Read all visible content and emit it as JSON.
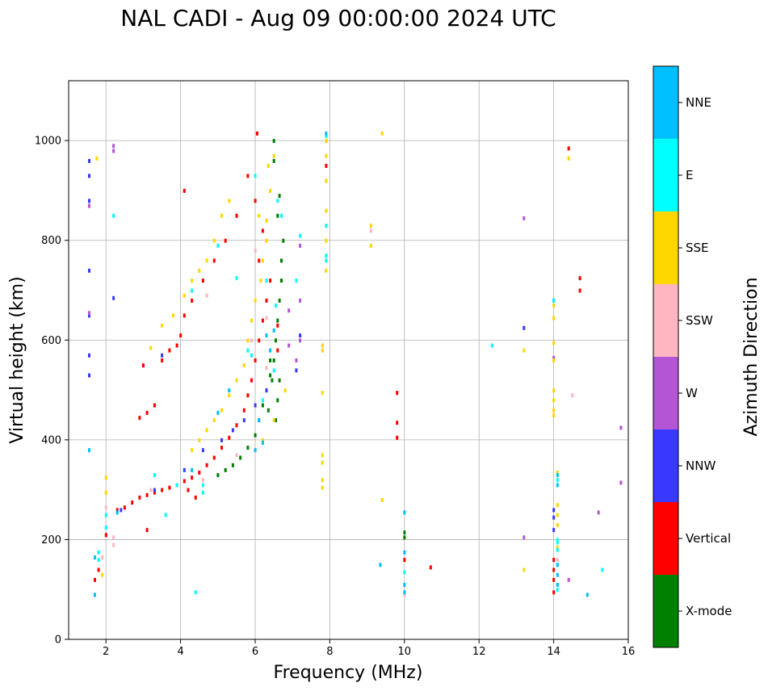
{
  "chart_data": {
    "type": "scatter",
    "title": "NAL CADI - Aug 09 00:00:00 2024 UTC",
    "xlabel": "Frequency (MHz)",
    "ylabel": "Virtual height (km)",
    "xlim": [
      1,
      16
    ],
    "ylim": [
      0,
      1120
    ],
    "xticks": [
      2,
      4,
      6,
      8,
      10,
      12,
      14,
      16
    ],
    "yticks": [
      0,
      200,
      400,
      600,
      800,
      1000
    ],
    "grid": true,
    "colorbar": {
      "label": "Azimuth Direction",
      "categories": [
        "X-mode",
        "Vertical",
        "NNW",
        "W",
        "SSW",
        "SSE",
        "E",
        "NNE"
      ],
      "colors": [
        "#008000",
        "#ff0000",
        "#3838ff",
        "#b455d6",
        "#ffb6c1",
        "#ffd700",
        "#00ffff",
        "#00bfff"
      ]
    },
    "series": [
      {
        "name": "X-mode",
        "points": [
          [
            5.0,
            330
          ],
          [
            5.2,
            340
          ],
          [
            5.4,
            350
          ],
          [
            5.6,
            365
          ],
          [
            5.8,
            385
          ],
          [
            6.0,
            410
          ],
          [
            6.1,
            440
          ],
          [
            6.2,
            470
          ],
          [
            6.3,
            500
          ],
          [
            6.4,
            530
          ],
          [
            6.5,
            560
          ],
          [
            6.55,
            600
          ],
          [
            6.6,
            640
          ],
          [
            6.65,
            680
          ],
          [
            6.7,
            720
          ],
          [
            6.7,
            760
          ],
          [
            6.75,
            800
          ],
          [
            6.6,
            850
          ],
          [
            6.65,
            890
          ],
          [
            6.5,
            960
          ],
          [
            6.5,
            1000
          ],
          [
            6.45,
            520
          ],
          [
            6.6,
            480
          ],
          [
            6.55,
            440
          ],
          [
            6.35,
            460
          ],
          [
            6.4,
            560
          ],
          [
            6.65,
            520
          ],
          [
            10.0,
            215
          ],
          [
            10.0,
            205
          ]
        ]
      },
      {
        "name": "Vertical",
        "points": [
          [
            1.7,
            120
          ],
          [
            1.8,
            140
          ],
          [
            2.0,
            210
          ],
          [
            2.3,
            260
          ],
          [
            2.5,
            265
          ],
          [
            2.7,
            275
          ],
          [
            2.9,
            285
          ],
          [
            3.1,
            290
          ],
          [
            3.3,
            295
          ],
          [
            3.5,
            300
          ],
          [
            3.7,
            305
          ],
          [
            3.9,
            310
          ],
          [
            4.1,
            318
          ],
          [
            4.3,
            325
          ],
          [
            4.5,
            335
          ],
          [
            4.7,
            350
          ],
          [
            4.9,
            365
          ],
          [
            5.1,
            385
          ],
          [
            5.3,
            405
          ],
          [
            5.5,
            430
          ],
          [
            5.7,
            460
          ],
          [
            5.8,
            490
          ],
          [
            5.9,
            520
          ],
          [
            6.0,
            560
          ],
          [
            6.1,
            600
          ],
          [
            6.2,
            640
          ],
          [
            6.3,
            680
          ],
          [
            6.4,
            720
          ],
          [
            6.1,
            760
          ],
          [
            6.2,
            820
          ],
          [
            6.0,
            880
          ],
          [
            5.8,
            930
          ],
          [
            5.5,
            850
          ],
          [
            5.2,
            800
          ],
          [
            4.9,
            760
          ],
          [
            4.6,
            720
          ],
          [
            4.3,
            680
          ],
          [
            4.1,
            650
          ],
          [
            4.0,
            610
          ],
          [
            3.9,
            590
          ],
          [
            3.7,
            580
          ],
          [
            3.5,
            560
          ],
          [
            3.3,
            470
          ],
          [
            3.1,
            455
          ],
          [
            2.9,
            445
          ],
          [
            3.0,
            550
          ],
          [
            3.1,
            220
          ],
          [
            4.1,
            900
          ],
          [
            6.05,
            1015
          ],
          [
            7.9,
            950
          ],
          [
            9.8,
            495
          ],
          [
            9.8,
            435
          ],
          [
            9.8,
            405
          ],
          [
            10.0,
            160
          ],
          [
            10.7,
            145
          ],
          [
            14.0,
            95
          ],
          [
            14.0,
            120
          ],
          [
            14.0,
            140
          ],
          [
            14.0,
            160
          ],
          [
            14.4,
            985
          ],
          [
            14.7,
            700
          ],
          [
            14.7,
            725
          ],
          [
            4.4,
            285
          ],
          [
            4.2,
            300
          ],
          [
            6.6,
            630
          ],
          [
            6.6,
            580
          ]
        ]
      },
      {
        "name": "NNW",
        "points": [
          [
            1.55,
            960
          ],
          [
            1.55,
            930
          ],
          [
            1.55,
            880
          ],
          [
            1.55,
            740
          ],
          [
            1.55,
            650
          ],
          [
            1.55,
            570
          ],
          [
            1.55,
            530
          ],
          [
            2.2,
            685
          ],
          [
            2.4,
            260
          ],
          [
            3.3,
            300
          ],
          [
            3.5,
            570
          ],
          [
            4.1,
            340
          ],
          [
            4.6,
            380
          ],
          [
            5.1,
            400
          ],
          [
            5.4,
            420
          ],
          [
            5.7,
            440
          ],
          [
            6.0,
            470
          ],
          [
            6.3,
            500
          ],
          [
            7.1,
            540
          ],
          [
            7.2,
            610
          ],
          [
            13.2,
            625
          ],
          [
            14.0,
            680
          ],
          [
            14.0,
            260
          ],
          [
            14.0,
            245
          ],
          [
            14.0,
            220
          ]
        ]
      },
      {
        "name": "W",
        "points": [
          [
            2.2,
            990
          ],
          [
            2.2,
            980
          ],
          [
            1.55,
            870
          ],
          [
            1.55,
            655
          ],
          [
            7.2,
            790
          ],
          [
            7.2,
            680
          ],
          [
            7.2,
            600
          ],
          [
            7.1,
            560
          ],
          [
            13.2,
            845
          ],
          [
            13.2,
            205
          ],
          [
            14.0,
            565
          ],
          [
            14.4,
            120
          ],
          [
            15.2,
            255
          ],
          [
            15.8,
            425
          ],
          [
            15.8,
            315
          ],
          [
            6.9,
            660
          ],
          [
            6.9,
            590
          ]
        ]
      },
      {
        "name": "SSW",
        "points": [
          [
            2.2,
            205
          ],
          [
            2.2,
            190
          ],
          [
            1.9,
            165
          ],
          [
            2.0,
            265
          ],
          [
            3.2,
            300
          ],
          [
            4.6,
            320
          ],
          [
            5.5,
            370
          ],
          [
            6.3,
            645
          ],
          [
            6.3,
            545
          ],
          [
            9.1,
            820
          ],
          [
            10.0,
            90
          ],
          [
            14.1,
            160
          ],
          [
            14.5,
            490
          ],
          [
            4.7,
            690
          ],
          [
            5.9,
            600
          ],
          [
            6.0,
            780
          ]
        ]
      },
      {
        "name": "SSE",
        "points": [
          [
            1.75,
            965
          ],
          [
            2.0,
            325
          ],
          [
            2.0,
            295
          ],
          [
            1.9,
            130
          ],
          [
            3.2,
            585
          ],
          [
            3.5,
            630
          ],
          [
            3.8,
            650
          ],
          [
            4.1,
            690
          ],
          [
            4.3,
            720
          ],
          [
            4.5,
            740
          ],
          [
            4.7,
            760
          ],
          [
            4.9,
            800
          ],
          [
            5.1,
            850
          ],
          [
            5.3,
            880
          ],
          [
            4.3,
            380
          ],
          [
            4.5,
            400
          ],
          [
            4.7,
            420
          ],
          [
            4.9,
            440
          ],
          [
            5.1,
            460
          ],
          [
            5.3,
            490
          ],
          [
            5.5,
            520
          ],
          [
            5.7,
            550
          ],
          [
            5.8,
            600
          ],
          [
            5.9,
            640
          ],
          [
            6.0,
            680
          ],
          [
            6.15,
            720
          ],
          [
            6.2,
            760
          ],
          [
            6.3,
            800
          ],
          [
            6.3,
            840
          ],
          [
            6.4,
            900
          ],
          [
            6.35,
            950
          ],
          [
            6.5,
            970
          ],
          [
            6.1,
            850
          ],
          [
            7.9,
            1000
          ],
          [
            7.9,
            970
          ],
          [
            7.9,
            920
          ],
          [
            7.9,
            860
          ],
          [
            7.9,
            830
          ],
          [
            7.9,
            800
          ],
          [
            7.9,
            760
          ],
          [
            7.9,
            740
          ],
          [
            7.8,
            590
          ],
          [
            7.8,
            580
          ],
          [
            7.8,
            495
          ],
          [
            7.8,
            370
          ],
          [
            7.8,
            355
          ],
          [
            7.8,
            320
          ],
          [
            7.8,
            305
          ],
          [
            9.1,
            830
          ],
          [
            9.1,
            790
          ],
          [
            9.4,
            1015
          ],
          [
            9.4,
            280
          ],
          [
            13.2,
            580
          ],
          [
            13.2,
            140
          ],
          [
            14.0,
            670
          ],
          [
            14.0,
            645
          ],
          [
            14.0,
            595
          ],
          [
            14.0,
            560
          ],
          [
            14.0,
            500
          ],
          [
            14.0,
            480
          ],
          [
            14.0,
            460
          ],
          [
            14.0,
            450
          ],
          [
            14.1,
            335
          ],
          [
            14.1,
            270
          ],
          [
            14.1,
            250
          ],
          [
            14.1,
            230
          ],
          [
            14.1,
            185
          ],
          [
            14.4,
            965
          ],
          [
            6.5,
            440
          ],
          [
            6.2,
            400
          ],
          [
            6.8,
            500
          ]
        ]
      },
      {
        "name": "E",
        "points": [
          [
            1.8,
            175
          ],
          [
            1.8,
            160
          ],
          [
            2.0,
            250
          ],
          [
            2.0,
            225
          ],
          [
            2.2,
            850
          ],
          [
            3.3,
            330
          ],
          [
            3.6,
            250
          ],
          [
            3.9,
            310
          ],
          [
            4.3,
            700
          ],
          [
            4.4,
            95
          ],
          [
            4.6,
            295
          ],
          [
            4.6,
            310
          ],
          [
            5.0,
            790
          ],
          [
            5.5,
            725
          ],
          [
            5.8,
            580
          ],
          [
            5.9,
            570
          ],
          [
            6.0,
            930
          ],
          [
            6.3,
            720
          ],
          [
            6.5,
            540
          ],
          [
            6.55,
            670
          ],
          [
            6.6,
            880
          ],
          [
            6.7,
            850
          ],
          [
            7.1,
            720
          ],
          [
            7.2,
            810
          ],
          [
            7.9,
            1010
          ],
          [
            7.9,
            830
          ],
          [
            7.9,
            770
          ],
          [
            7.9,
            760
          ],
          [
            10.0,
            135
          ],
          [
            12.35,
            590
          ],
          [
            14.0,
            680
          ],
          [
            14.1,
            320
          ],
          [
            14.1,
            200
          ],
          [
            14.1,
            195
          ],
          [
            14.1,
            180
          ],
          [
            14.1,
            150
          ],
          [
            14.1,
            110
          ],
          [
            14.1,
            100
          ],
          [
            15.3,
            140
          ],
          [
            6.2,
            480
          ]
        ]
      },
      {
        "name": "NNE",
        "points": [
          [
            1.7,
            165
          ],
          [
            1.7,
            90
          ],
          [
            1.55,
            380
          ],
          [
            2.3,
            255
          ],
          [
            4.3,
            340
          ],
          [
            5.0,
            455
          ],
          [
            5.3,
            500
          ],
          [
            6.1,
            440
          ],
          [
            6.3,
            610
          ],
          [
            6.4,
            580
          ],
          [
            6.5,
            620
          ],
          [
            7.9,
            1015
          ],
          [
            9.35,
            150
          ],
          [
            10.0,
            255
          ],
          [
            10.0,
            175
          ],
          [
            10.0,
            110
          ],
          [
            10.0,
            95
          ],
          [
            14.1,
            330
          ],
          [
            14.1,
            310
          ],
          [
            14.1,
            150
          ],
          [
            14.1,
            130
          ],
          [
            14.1,
            110
          ],
          [
            14.9,
            90
          ],
          [
            6.2,
            395
          ],
          [
            6.0,
            380
          ]
        ]
      }
    ]
  }
}
